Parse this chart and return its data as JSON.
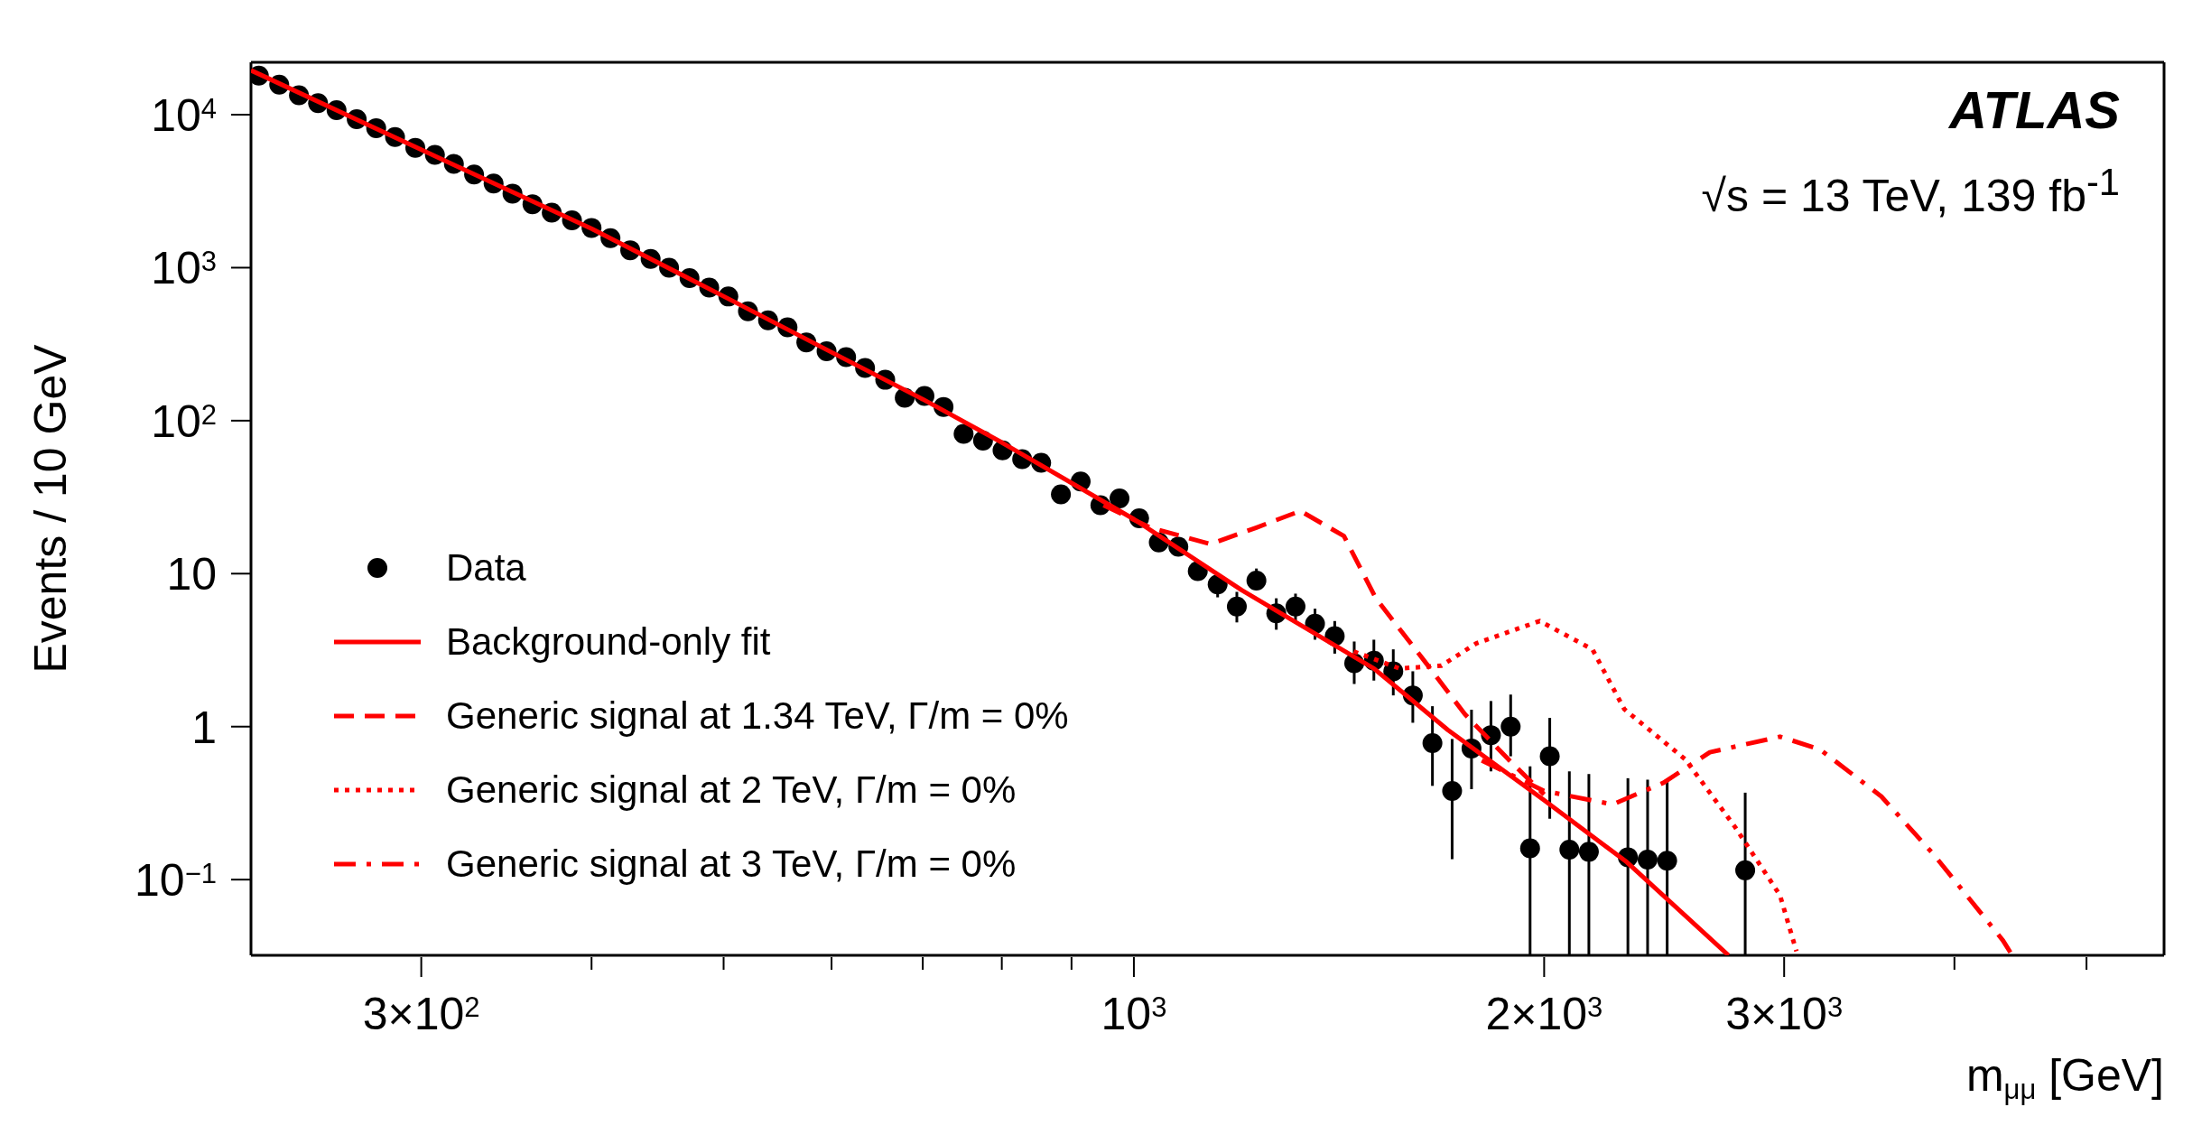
{
  "chart_data": {
    "type": "line",
    "xlabel": "m$_{μμ}$ [GeV]",
    "ylabel": "Events / 10 GeV",
    "annotations": [
      "ATLAS",
      "√s = 13 TeV, 139 fb$^{-1}$"
    ],
    "log": "xy",
    "legend": "bottom left",
    "xlim": [
      225,
      5700
    ],
    "ylim": [
      0.032,
      22000
    ],
    "xticks": [
      {
        "value": 300,
        "label": "3×10$^{2}$"
      },
      {
        "value": 400,
        "label": null
      },
      {
        "value": 500,
        "label": null
      },
      {
        "value": 600,
        "label": null
      },
      {
        "value": 700,
        "label": null
      },
      {
        "value": 800,
        "label": null
      },
      {
        "value": 900,
        "label": null
      },
      {
        "value": 1000,
        "label": "10$^{3}$"
      },
      {
        "value": 2000,
        "label": "2×10$^{3}$"
      },
      {
        "value": 3000,
        "label": "3×10$^{3}$"
      },
      {
        "value": 4000,
        "label": null
      },
      {
        "value": 5000,
        "label": null
      }
    ],
    "yticks": [
      {
        "value": 0.1,
        "label": "10$^{−1}$"
      },
      1,
      10,
      {
        "value": 100,
        "label": "10$^{2}$"
      },
      {
        "value": 1000,
        "label": "10$^{3}$"
      },
      {
        "value": 10000,
        "label": "10$^{4}$"
      }
    ],
    "series": [
      {
        "name": "Data",
        "type": "scatter",
        "marker": "circle",
        "color": "#000000",
        "x": [
          228,
          236,
          244,
          252,
          260,
          269,
          278,
          287,
          297,
          307,
          317,
          328,
          339,
          350,
          362,
          374,
          387,
          400,
          413,
          427,
          442,
          456,
          472,
          488,
          504,
          521,
          539,
          557,
          575,
          595,
          615,
          635,
          657,
          679,
          702,
          725,
          750,
          775,
          801,
          828,
          855,
          884,
          914,
          945,
          976,
          1009,
          1043,
          1078,
          1114,
          1152,
          1190,
          1230,
          1272,
          1314,
          1358,
          1404,
          1451,
          1500,
          1550,
          1602,
          1656,
          1712,
          1769,
          1828,
          1890,
          1953,
          2019,
          2087,
          2157,
          2304,
          2382,
          2462,
          2809
        ],
        "values": [
          18000,
          15700,
          13400,
          11900,
          10700,
          9350,
          8170,
          7140,
          6080,
          5460,
          4770,
          4060,
          3550,
          3050,
          2600,
          2290,
          2040,
          1820,
          1560,
          1300,
          1140,
          1000,
          855,
          741,
          648,
          519,
          453,
          407,
          325,
          284,
          260,
          221,
          185,
          141,
          145,
          123,
          82,
          74,
          64,
          56,
          53,
          33,
          40,
          28,
          31,
          23,
          16,
          15,
          10.4,
          8.5,
          6.1,
          9.0,
          5.5,
          6.1,
          4.7,
          3.9,
          2.6,
          2.7,
          2.3,
          1.6,
          0.78,
          0.38,
          0.72,
          0.88,
          1.0,
          0.16,
          0.64,
          0.157,
          0.152,
          0.14,
          0.135,
          0.133,
          0.115
        ],
        "errors": [
          null,
          null,
          null,
          null,
          null,
          null,
          null,
          null,
          null,
          null,
          null,
          null,
          null,
          null,
          null,
          null,
          null,
          null,
          null,
          null,
          null,
          null,
          null,
          null,
          null,
          null,
          null,
          null,
          null,
          null,
          null,
          null,
          null,
          null,
          null,
          null,
          null,
          null,
          null,
          null,
          null,
          null,
          null,
          null,
          null,
          null,
          null,
          null,
          null,
          [
            7.0,
            9.7
          ],
          [
            4.8,
            7.6
          ],
          [
            7.9,
            10.8
          ],
          [
            4.3,
            6.9
          ],
          [
            4.9,
            7.4
          ],
          [
            3.7,
            5.9
          ],
          [
            3.0,
            4.9
          ],
          [
            1.9,
            3.6
          ],
          [
            2.0,
            3.7
          ],
          [
            1.6,
            3.2
          ],
          [
            1.06,
            2.3
          ],
          [
            0.41,
            1.36
          ],
          [
            0.136,
            0.83
          ],
          [
            0.39,
            1.29
          ],
          [
            0.51,
            1.47
          ],
          [
            0.64,
            1.62
          ],
          [
            0.032,
            0.55
          ],
          [
            0.25,
            1.14
          ],
          [
            0.032,
            0.51
          ],
          [
            0.032,
            0.49
          ],
          [
            0.032,
            0.46
          ],
          [
            0.032,
            0.45
          ],
          [
            0.032,
            0.44
          ],
          [
            0.032,
            0.37
          ]
        ]
      },
      {
        "name": "Background-only fit",
        "line_style": "solid",
        "color": "#ff0000",
        "x": [
          225,
          300,
          400,
          500,
          600,
          700,
          800,
          1000,
          1200,
          1500,
          1700,
          2000,
          2300,
          2731
        ],
        "values": [
          19500,
          5900,
          1800,
          650,
          280,
          138,
          72,
          22.7,
          7.8,
          2.4,
          0.95,
          0.33,
          0.13,
          0.032
        ]
      },
      {
        "name": "Generic signal at 1.34 TeV, Γ/m = 0%",
        "line_style": "dashed",
        "color": "#ff0000",
        "x": [
          950,
          1028,
          1138,
          1230,
          1325,
          1426,
          1505,
          1633,
          1750,
          1883,
          2000
        ],
        "values": [
          28,
          20,
          15.6,
          20,
          25.7,
          17.6,
          6.9,
          2.7,
          1.2,
          0.61,
          0.36
        ]
      },
      {
        "name": "Generic signal at 2 TeV, Γ/m = 0%",
        "line_style": "dotted",
        "color": "#ff0000",
        "x": [
          1450,
          1566,
          1681,
          1783,
          1985,
          2170,
          2290,
          2539,
          2762,
          2979,
          3063
        ],
        "values": [
          3.1,
          2.4,
          2.5,
          3.5,
          4.9,
          3.2,
          1.3,
          0.61,
          0.22,
          0.079,
          0.034
        ]
      },
      {
        "name": "Generic signal at 3 TeV, Γ/m = 0%",
        "line_style": "dashdot",
        "color": "#ff0000",
        "x": [
          1800,
          2000,
          2245,
          2447,
          2646,
          2979,
          3187,
          3535,
          3862,
          4342,
          4410
        ],
        "values": [
          0.6,
          0.38,
          0.31,
          0.43,
          0.68,
          0.86,
          0.71,
          0.35,
          0.146,
          0.04,
          0.032
        ]
      }
    ]
  }
}
